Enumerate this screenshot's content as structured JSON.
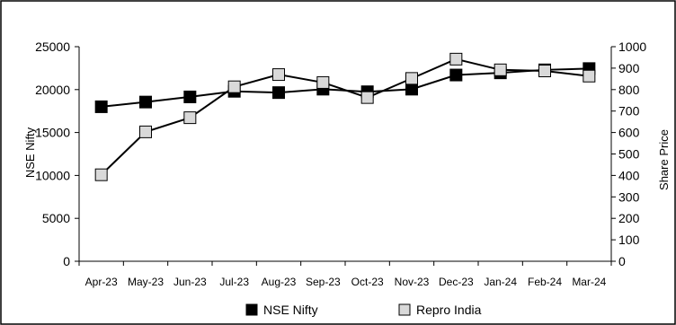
{
  "chart_data": {
    "type": "line",
    "categories": [
      "Apr-23",
      "May-23",
      "Jun-23",
      "Jul-23",
      "Aug-23",
      "Sep-23",
      "Oct-23",
      "Nov-23",
      "Dec-23",
      "Jan-24",
      "Feb-24",
      "Mar-24"
    ],
    "y_left": {
      "label": "NSE Nifty",
      "range": [
        0,
        25000
      ],
      "ticks": [
        0,
        5000,
        10000,
        15000,
        20000,
        25000
      ]
    },
    "y_right": {
      "label": "Share Price",
      "range": [
        0,
        1000
      ],
      "ticks": [
        0,
        100,
        200,
        300,
        400,
        500,
        600,
        700,
        800,
        900,
        1000
      ]
    },
    "series": [
      {
        "name": "NSE Nifty",
        "axis": "left",
        "marker": "square",
        "color": "#000000",
        "values": [
          18000,
          18550,
          19150,
          19800,
          19650,
          20050,
          19750,
          20050,
          21700,
          21950,
          22300,
          22450
        ]
      },
      {
        "name": "Repro India",
        "axis": "right",
        "marker": "square",
        "color": "#d9d9d9",
        "values": [
          403,
          603,
          669,
          813,
          870,
          833,
          763,
          852,
          942,
          892,
          887,
          863
        ]
      }
    ],
    "grid": false,
    "legend": "bottom"
  }
}
